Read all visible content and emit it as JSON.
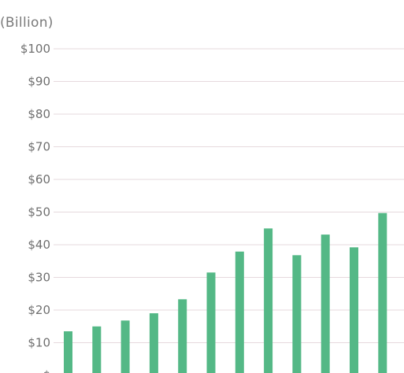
{
  "chart_data": {
    "type": "bar",
    "unit_label": "(Billion)",
    "title": "",
    "xlabel": "",
    "ylabel": "",
    "ylim": [
      0,
      100
    ],
    "yticks": [
      {
        "value": 100,
        "label": "$100"
      },
      {
        "value": 90,
        "label": "$90"
      },
      {
        "value": 80,
        "label": "$80"
      },
      {
        "value": 70,
        "label": "$70"
      },
      {
        "value": 60,
        "label": "$60"
      },
      {
        "value": 50,
        "label": "$50"
      },
      {
        "value": 40,
        "label": "$40"
      },
      {
        "value": 30,
        "label": "$30"
      },
      {
        "value": 20,
        "label": "$20"
      },
      {
        "value": 10,
        "label": "$10"
      },
      {
        "value": 0,
        "label": "$"
      }
    ],
    "grid": true,
    "legend": "none",
    "bar_color": "#54b886",
    "grid_color": "#e6d9dd",
    "values": [
      13.5,
      15,
      16.8,
      19,
      23.3,
      31.5,
      37.9,
      45,
      36.8,
      43.1,
      39.2,
      49.7
    ]
  }
}
